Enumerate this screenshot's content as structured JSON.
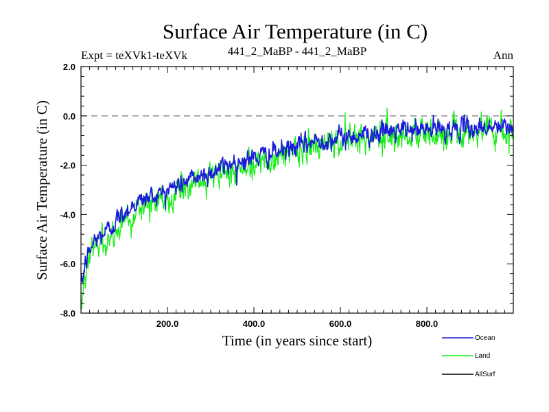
{
  "chart_data": {
    "type": "line",
    "title": "Surface Air Temperature (in C)",
    "subtitle_left": "Expt = teXVk1-teXVk",
    "subtitle_center": "441_2_MaBP - 441_2_MaBP",
    "subtitle_right": "Ann",
    "xlabel": "Time (in years since start)",
    "ylabel": "Surface Air Temperature (in C)",
    "xlim": [
      0,
      1000
    ],
    "ylim": [
      -8.0,
      2.0
    ],
    "x_ticks": [
      200,
      400,
      600,
      800
    ],
    "x_tick_labels": [
      "200.0",
      "400.0",
      "600.0",
      "800.0"
    ],
    "y_ticks": [
      -8.0,
      -6.0,
      -4.0,
      -2.0,
      0.0,
      2.0
    ],
    "y_tick_labels": [
      "-8.0",
      "-6.0",
      "-4.0",
      "-2.0",
      "0.0",
      "2.0"
    ],
    "reference_line": {
      "y": 0.0,
      "style": "dashed",
      "color": "#808080"
    },
    "grid": false,
    "legend_position": "bottom-right, below the plot",
    "series": [
      {
        "name": "Ocean",
        "color": "#1a1adb",
        "x": [
          0,
          10,
          20,
          30,
          50,
          70,
          100,
          130,
          160,
          200,
          250,
          300,
          350,
          400,
          450,
          500,
          550,
          600,
          650,
          700,
          750,
          800,
          850,
          900,
          950,
          1000
        ],
        "values": [
          -7.0,
          -6.0,
          -5.5,
          -5.1,
          -4.8,
          -4.5,
          -3.9,
          -3.5,
          -3.3,
          -3.0,
          -2.6,
          -2.3,
          -1.9,
          -1.7,
          -1.5,
          -1.25,
          -1.0,
          -0.9,
          -0.75,
          -0.65,
          -0.6,
          -0.55,
          -0.55,
          -0.5,
          -0.45,
          -0.5
        ]
      },
      {
        "name": "Land",
        "color": "#19ee19",
        "x": [
          0,
          10,
          20,
          30,
          50,
          70,
          100,
          130,
          160,
          200,
          250,
          300,
          350,
          400,
          450,
          500,
          550,
          600,
          650,
          700,
          750,
          800,
          850,
          900,
          950,
          1000
        ],
        "values": [
          -7.3,
          -6.3,
          -5.8,
          -5.4,
          -5.1,
          -4.8,
          -4.3,
          -3.8,
          -3.6,
          -3.3,
          -2.9,
          -2.6,
          -2.2,
          -1.9,
          -1.7,
          -1.45,
          -1.2,
          -1.05,
          -0.9,
          -0.8,
          -0.75,
          -0.7,
          -0.7,
          -0.65,
          -0.6,
          -0.7
        ]
      },
      {
        "name": "AllSurf",
        "color": "#000000",
        "x": [],
        "values": []
      }
    ]
  }
}
